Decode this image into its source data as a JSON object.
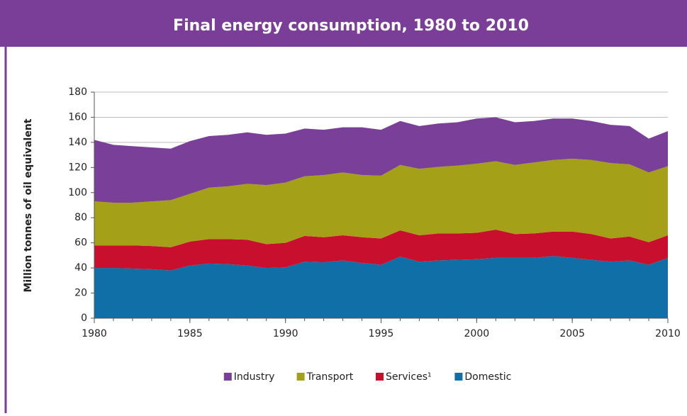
{
  "chart_data": {
    "type": "stacked_area",
    "title": "Final energy consumption, 1980 to 2010",
    "y_label": "Million tonnes of oil equivalent",
    "x": [
      1980,
      1981,
      1982,
      1983,
      1984,
      1985,
      1986,
      1987,
      1988,
      1989,
      1990,
      1991,
      1992,
      1993,
      1994,
      1995,
      1996,
      1997,
      1998,
      1999,
      2000,
      2001,
      2002,
      2003,
      2004,
      2005,
      2006,
      2007,
      2008,
      2009,
      2010
    ],
    "xlim": [
      1980,
      2010
    ],
    "xticks": [
      1980,
      1985,
      1990,
      1995,
      2000,
      2005,
      2010
    ],
    "ylim": [
      0,
      180
    ],
    "yticks": [
      0,
      20,
      40,
      60,
      80,
      100,
      120,
      140,
      160,
      180
    ],
    "grid": true,
    "legend": "bottom",
    "series": [
      {
        "name": "Domestic",
        "color": "#0f6fa6",
        "values": [
          40,
          40,
          39.5,
          39,
          38,
          42,
          43.5,
          43,
          42,
          40,
          40.5,
          45,
          44.5,
          46,
          44,
          42.5,
          49,
          45,
          46,
          46.5,
          47,
          48,
          48,
          48,
          49.5,
          48,
          46.5,
          45,
          46,
          42.5,
          48
        ]
      },
      {
        "name": "Services¹",
        "color": "#c8102e",
        "values": [
          18,
          18,
          18.5,
          18.5,
          18.5,
          19,
          19.5,
          20,
          20.5,
          19,
          19.5,
          20.5,
          20,
          20,
          20.5,
          21,
          21,
          21,
          21.5,
          21,
          21,
          22.5,
          19,
          19.5,
          19.5,
          21,
          20.5,
          18.5,
          19,
          18,
          18
        ]
      },
      {
        "name": "Transport",
        "color": "#a4a118",
        "values": [
          35,
          34,
          34,
          35.5,
          37.5,
          38,
          41,
          42,
          44.5,
          47,
          48,
          47.5,
          49.5,
          50,
          49.5,
          50,
          52,
          53,
          53,
          54,
          55,
          54.5,
          55,
          56.5,
          57,
          58,
          59,
          60,
          57.5,
          55.5,
          55
        ]
      },
      {
        "name": "Industry",
        "color": "#7a3f98",
        "values": [
          49,
          46,
          45,
          43,
          41,
          42,
          41,
          41,
          41,
          40,
          39,
          38,
          36,
          36,
          38,
          36.5,
          35,
          34,
          34.5,
          34.5,
          36,
          35,
          34,
          33,
          33,
          32,
          31,
          30.5,
          30.5,
          27,
          28
        ]
      }
    ]
  }
}
